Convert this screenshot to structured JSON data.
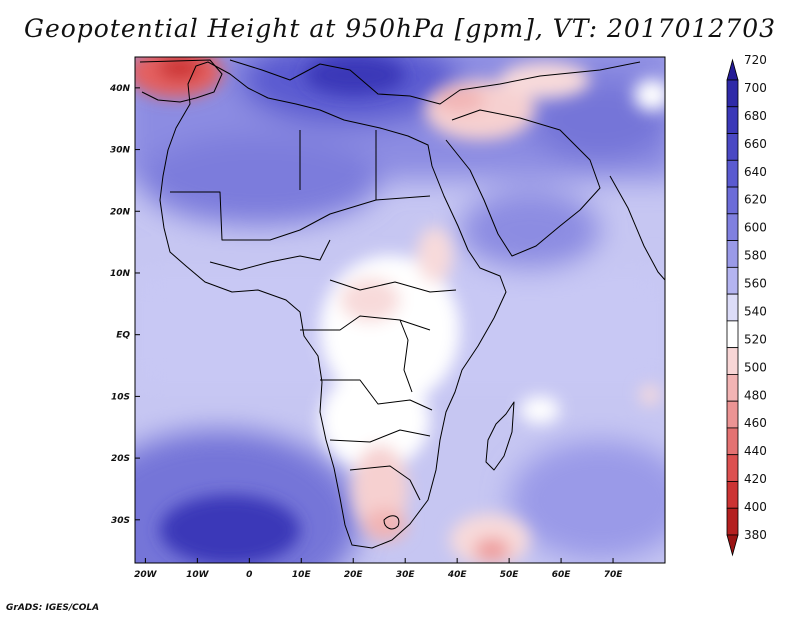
{
  "title": "Geopotential Height at 950hPa [gpm], VT: 2017012703",
  "credit": "GrADS: IGES/COLA",
  "map": {
    "lon_range": [
      -22,
      80
    ],
    "lat_range": [
      -37,
      45
    ],
    "x_ticks": [
      {
        "value": -20,
        "label": "20W"
      },
      {
        "value": -10,
        "label": "10W"
      },
      {
        "value": 0,
        "label": "0"
      },
      {
        "value": 10,
        "label": "10E"
      },
      {
        "value": 20,
        "label": "20E"
      },
      {
        "value": 30,
        "label": "30E"
      },
      {
        "value": 40,
        "label": "40E"
      },
      {
        "value": 50,
        "label": "50E"
      },
      {
        "value": 60,
        "label": "60E"
      },
      {
        "value": 70,
        "label": "70E"
      }
    ],
    "y_ticks": [
      {
        "value": 40,
        "label": "40N"
      },
      {
        "value": 30,
        "label": "30N"
      },
      {
        "value": 20,
        "label": "20N"
      },
      {
        "value": 10,
        "label": "10N"
      },
      {
        "value": 0,
        "label": "EQ"
      },
      {
        "value": -10,
        "label": "10S"
      },
      {
        "value": -20,
        "label": "20S"
      },
      {
        "value": -30,
        "label": "30S"
      }
    ]
  },
  "colorbar": {
    "levels": [
      "720",
      "700",
      "680",
      "660",
      "640",
      "620",
      "600",
      "580",
      "560",
      "540",
      "520",
      "500",
      "480",
      "460",
      "440",
      "420",
      "400",
      "380"
    ],
    "colors": [
      "#241c96",
      "#2f2aa8",
      "#3b38b8",
      "#4a48c4",
      "#5a5ad0",
      "#6c6cd8",
      "#8080e0",
      "#9a9ae8",
      "#b4b4f0",
      "#dcdcf8",
      "#ffffff",
      "#f8d6d6",
      "#f2b4b4",
      "#ec9494",
      "#e47272",
      "#dc5050",
      "#cc3434",
      "#b42020",
      "#9a1414"
    ]
  }
}
